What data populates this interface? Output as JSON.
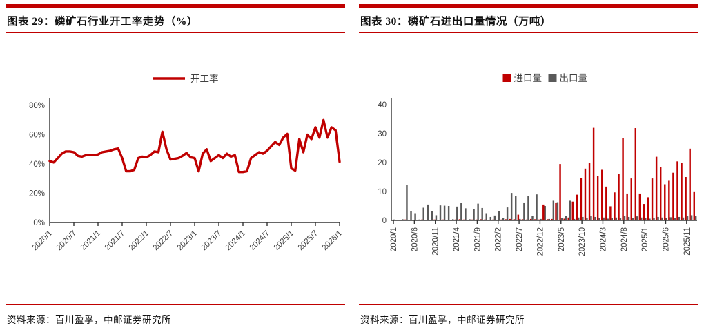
{
  "colors": {
    "accent_red": "#c00000",
    "bar_gray": "#595959",
    "axis": "#333333",
    "tick_text": "#404040"
  },
  "panels": [
    {
      "title": "图表 29：磷矿石行业开工率走势（%）",
      "source": "资料来源：百川盈孚，中邮证券研究所"
    },
    {
      "title": "图表 30：磷矿石进出口量情况（万吨）",
      "source": "资料来源：百川盈孚，中邮证券研究所"
    }
  ],
  "chart_data": [
    {
      "type": "line",
      "title": "磷矿石行业开工率走势（%）",
      "legend": [
        "开工率"
      ],
      "legend_position": "top",
      "line_color": "#c00000",
      "grid": false,
      "ylim": [
        0,
        80
      ],
      "yticks": [
        0,
        20,
        40,
        60,
        80
      ],
      "ytick_labels": [
        "0%",
        "20%",
        "40%",
        "60%",
        "80%"
      ],
      "xtick_every": 6,
      "xtick_labels": [
        "2020/1",
        "2020/7",
        "2021/1",
        "2021/7",
        "2022/1",
        "2022/7",
        "2023/1",
        "2023/7",
        "2024/1",
        "2024/7",
        "2025/1",
        "2025/7",
        "2026/1"
      ],
      "x": [
        "2020/1",
        "2020/2",
        "2020/3",
        "2020/4",
        "2020/5",
        "2020/6",
        "2020/7",
        "2020/8",
        "2020/9",
        "2020/10",
        "2020/11",
        "2020/12",
        "2021/1",
        "2021/2",
        "2021/3",
        "2021/4",
        "2021/5",
        "2021/6",
        "2021/7",
        "2021/8",
        "2021/9",
        "2021/10",
        "2021/11",
        "2021/12",
        "2022/1",
        "2022/2",
        "2022/3",
        "2022/4",
        "2022/5",
        "2022/6",
        "2022/7",
        "2022/8",
        "2022/9",
        "2022/10",
        "2022/11",
        "2022/12",
        "2023/1",
        "2023/2",
        "2023/3",
        "2023/4",
        "2023/5",
        "2023/6",
        "2023/7",
        "2023/8",
        "2023/9",
        "2023/10",
        "2023/11",
        "2023/12",
        "2024/1",
        "2024/2",
        "2024/3",
        "2024/4",
        "2024/5",
        "2024/6",
        "2024/7",
        "2024/8",
        "2024/9",
        "2024/10",
        "2024/11",
        "2024/12",
        "2025/1",
        "2025/2",
        "2025/3",
        "2025/4",
        "2025/5",
        "2025/6",
        "2025/7",
        "2025/8",
        "2025/9",
        "2025/10",
        "2025/11",
        "2025/12",
        "2026/1"
      ],
      "values": [
        42,
        41,
        44,
        47,
        48.5,
        48.5,
        48,
        45.5,
        45,
        46,
        46,
        46,
        46.5,
        48,
        48.5,
        49,
        50,
        50.5,
        44,
        35,
        35,
        36,
        44,
        45,
        44.5,
        46,
        48.5,
        48,
        62,
        50,
        43,
        43.5,
        44,
        45.5,
        47.5,
        44.5,
        44,
        35,
        47,
        50,
        42,
        44,
        46,
        44,
        47,
        45,
        46,
        34.5,
        34.5,
        35,
        44,
        46,
        48,
        47,
        49,
        52,
        55,
        53,
        58,
        60.5,
        37,
        35.5,
        57,
        48,
        60,
        57,
        65,
        58,
        70,
        58,
        65,
        63,
        41.5
      ]
    },
    {
      "type": "bar",
      "title": "磷矿石进出口量情况（万吨）",
      "legend_position": "top",
      "grid": false,
      "ylim": [
        0,
        40
      ],
      "yticks": [
        0,
        10,
        20,
        30,
        40
      ],
      "ytick_labels": [
        "0",
        "10",
        "20",
        "30",
        "40"
      ],
      "xtick_every": 5,
      "xtick_labels": [
        "2020/1",
        "2020/6",
        "2020/11",
        "2021/4",
        "2021/9",
        "2022/2",
        "2022/7",
        "2022/12",
        "2023/5",
        "2023/10",
        "2024/3",
        "2024/8",
        "2025/1",
        "2025/6",
        "2025/11"
      ],
      "categories": [
        "2020/1",
        "2020/2",
        "2020/3",
        "2020/4",
        "2020/5",
        "2020/6",
        "2020/7",
        "2020/8",
        "2020/9",
        "2020/10",
        "2020/11",
        "2020/12",
        "2021/1",
        "2021/2",
        "2021/3",
        "2021/4",
        "2021/5",
        "2021/6",
        "2021/7",
        "2021/8",
        "2021/9",
        "2021/10",
        "2021/11",
        "2021/12",
        "2022/1",
        "2022/2",
        "2022/3",
        "2022/4",
        "2022/5",
        "2022/6",
        "2022/7",
        "2022/8",
        "2022/9",
        "2022/10",
        "2022/11",
        "2022/12",
        "2023/1",
        "2023/2",
        "2023/3",
        "2023/4",
        "2023/5",
        "2023/6",
        "2023/7",
        "2023/8",
        "2023/9",
        "2023/10",
        "2023/11",
        "2023/12",
        "2024/1",
        "2024/2",
        "2024/3",
        "2024/4",
        "2024/5",
        "2024/6",
        "2024/7",
        "2024/8",
        "2024/9",
        "2024/10",
        "2024/11",
        "2024/12",
        "2025/1",
        "2025/2",
        "2025/3",
        "2025/4",
        "2025/5",
        "2025/6",
        "2025/7",
        "2025/8",
        "2025/9",
        "2025/10",
        "2025/11",
        "2025/12",
        "2026/1"
      ],
      "series": [
        {
          "name": "进口量",
          "color": "#c00000",
          "values": [
            0.2,
            0.1,
            0.2,
            0.3,
            0.2,
            0.2,
            0.1,
            0.3,
            0.2,
            0.2,
            0.3,
            0.2,
            0.3,
            0.2,
            0.2,
            0.3,
            0.4,
            0.3,
            0.2,
            0.3,
            0.3,
            0.4,
            0.3,
            0.2,
            0.3,
            0.2,
            0.3,
            0.4,
            0.5,
            0.4,
            2.0,
            0.4,
            0.3,
            0.5,
            0.4,
            0.3,
            5.5,
            0.4,
            0.5,
            6.2,
            19.5,
            0.6,
            1.0,
            6.5,
            8.9,
            14.6,
            17.9,
            20.0,
            32.0,
            15.4,
            17.5,
            11.7,
            4.9,
            9.7,
            16.0,
            28.4,
            9.3,
            14.5,
            31.9,
            9.3,
            5.7,
            8.0,
            14.5,
            22.0,
            18.4,
            12.5,
            13.7,
            16.5,
            20.4,
            19.8,
            15.0,
            24.8,
            9.8
          ]
        },
        {
          "name": "出口量",
          "color": "#595959",
          "values": [
            0.3,
            0.2,
            0.4,
            12.3,
            3.2,
            2.5,
            0.3,
            4.4,
            5.5,
            3.2,
            1.8,
            5.2,
            5.1,
            5.0,
            0.4,
            4.8,
            6.0,
            4.2,
            0.4,
            4.0,
            5.8,
            4.3,
            2.5,
            1.2,
            1.7,
            3.3,
            0.8,
            4.5,
            9.5,
            8.5,
            0.5,
            6.2,
            8.5,
            1.5,
            9.0,
            0.5,
            5.0,
            0.5,
            6.8,
            6.3,
            0.8,
            1.5,
            6.8,
            0.5,
            1.0,
            1.2,
            0.8,
            1.5,
            1.2,
            0.8,
            1.0,
            0.6,
            0.8,
            1.0,
            0.7,
            1.5,
            1.2,
            0.9,
            1.4,
            1.0,
            0.8,
            0.6,
            0.9,
            1.2,
            1.0,
            0.8,
            1.1,
            0.9,
            1.2,
            1.0,
            1.5,
            1.8,
            1.5
          ]
        }
      ]
    }
  ]
}
